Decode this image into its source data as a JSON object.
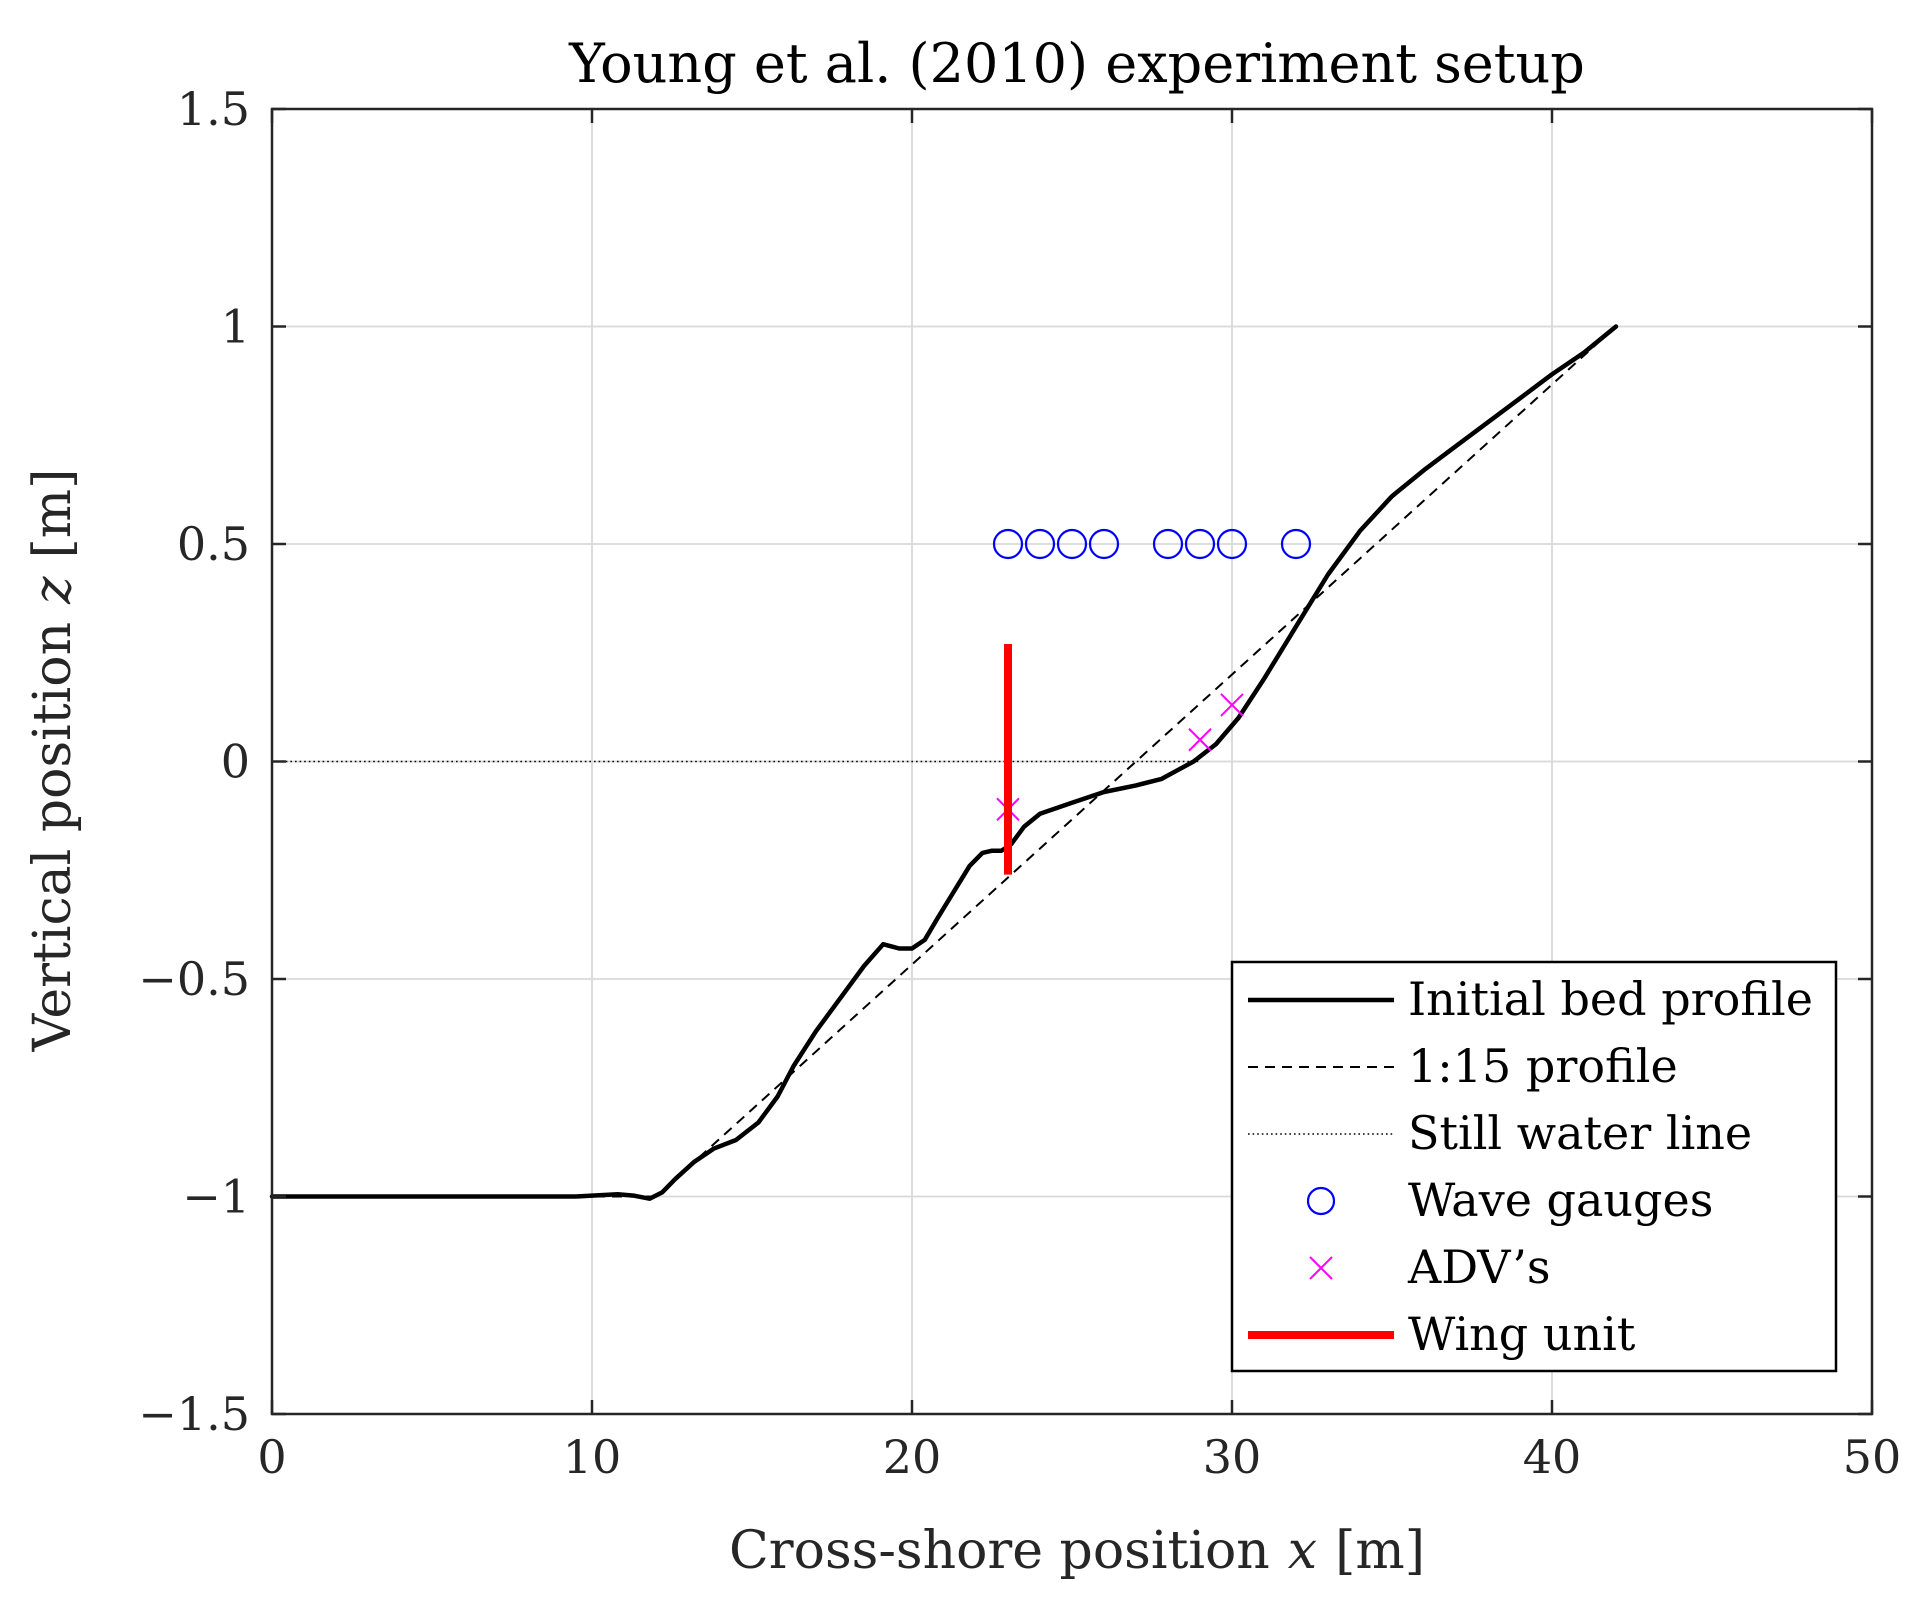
{
  "chart_data": {
    "type": "line",
    "title": "Young et al. (2010) experiment setup",
    "xlabel": {
      "prefix": "Cross-shore position",
      "var": "x",
      "unit": "[m]"
    },
    "ylabel": {
      "prefix": "Vertical position",
      "var": "z",
      "unit": "[m]"
    },
    "xlim": [
      0,
      50
    ],
    "ylim": [
      -1.5,
      1.5
    ],
    "xticks": [
      0,
      10,
      20,
      30,
      40,
      50
    ],
    "xtick_labels": [
      "0",
      "10",
      "20",
      "30",
      "40",
      "50"
    ],
    "yticks": [
      -1.5,
      -1,
      -0.5,
      0,
      0.5,
      1,
      1.5
    ],
    "ytick_labels": [
      "−1.5",
      "−1",
      "−0.5",
      "0",
      "0.5",
      "1",
      "1.5"
    ],
    "grid": true,
    "legend_position": "bottom-right",
    "colors": {
      "bed": "#000000",
      "slope": "#000000",
      "still_water": "#000000",
      "gauges": "#0000ff",
      "adv": "#ff00ff",
      "wing": "#ff0000",
      "grid": "#d9d9d9",
      "axis": "#262626"
    },
    "series": [
      {
        "name": "Initial bed profile",
        "style": "solid",
        "x": [
          0,
          5,
          8,
          9.5,
          10.8,
          11.3,
          11.8,
          12.2,
          12.6,
          13.2,
          13.8,
          14.5,
          15.2,
          15.8,
          16.3,
          17,
          17.8,
          18.5,
          19.1,
          19.6,
          20,
          20.4,
          20.8,
          21.3,
          21.8,
          22.2,
          22.5,
          22.8,
          23.1,
          23.5,
          24,
          25,
          26,
          27,
          27.8,
          28.3,
          28.8,
          29.5,
          30.2,
          31,
          32,
          33,
          34,
          35,
          36,
          37,
          38,
          39,
          40,
          41,
          42
        ],
        "y": [
          -1.0,
          -1.0,
          -1.0,
          -1.0,
          -0.995,
          -0.998,
          -1.005,
          -0.99,
          -0.96,
          -0.92,
          -0.89,
          -0.87,
          -0.83,
          -0.77,
          -0.7,
          -0.62,
          -0.54,
          -0.47,
          -0.42,
          -0.43,
          -0.43,
          -0.41,
          -0.36,
          -0.3,
          -0.24,
          -0.21,
          -0.205,
          -0.205,
          -0.19,
          -0.15,
          -0.12,
          -0.095,
          -0.07,
          -0.055,
          -0.04,
          -0.02,
          0.0,
          0.04,
          0.1,
          0.19,
          0.31,
          0.43,
          0.53,
          0.61,
          0.67,
          0.725,
          0.78,
          0.835,
          0.89,
          0.94,
          1.0
        ]
      },
      {
        "name": "1:15 profile",
        "style": "dashed",
        "x": [
          0,
          12,
          42
        ],
        "y": [
          -1.0,
          -1.0,
          1.0
        ]
      },
      {
        "name": "Still water line",
        "style": "dotted",
        "x": [
          0,
          29
        ],
        "y": [
          0,
          0
        ]
      },
      {
        "name": "Wave gauges",
        "style": "circle",
        "x": [
          23,
          24,
          25,
          26,
          28,
          29,
          30,
          32
        ],
        "y": [
          0.5,
          0.5,
          0.5,
          0.5,
          0.5,
          0.5,
          0.5,
          0.5
        ]
      },
      {
        "name": "ADV’s",
        "style": "cross",
        "x": [
          23,
          29,
          30
        ],
        "y": [
          -0.11,
          0.05,
          0.13
        ]
      },
      {
        "name": "Wing unit",
        "style": "thick",
        "x": [
          23,
          23
        ],
        "y": [
          -0.26,
          0.27
        ]
      }
    ]
  }
}
